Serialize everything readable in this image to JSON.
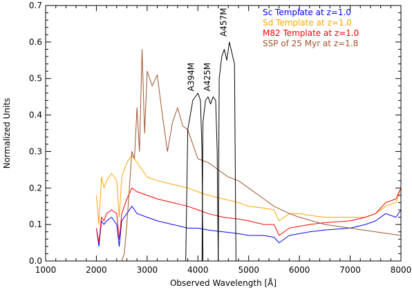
{
  "chart_data": {
    "type": "line",
    "xlabel": "Observed Wavelength [Å]",
    "ylabel": "Normalized Units",
    "xlim": [
      1000,
      8000
    ],
    "ylim": [
      0.0,
      0.7
    ],
    "x_ticks": [
      1000,
      2000,
      3000,
      4000,
      5000,
      6000,
      7000,
      8000
    ],
    "x_tick_labels": [
      "1000",
      "2000",
      "3000",
      "4000",
      "5000",
      "6000",
      "7000",
      "8000"
    ],
    "y_ticks": [
      0.0,
      0.1,
      0.2,
      0.3,
      0.4,
      0.5,
      0.6,
      0.7
    ],
    "y_tick_labels": [
      "0.0",
      "0.1",
      "0.2",
      "0.3",
      "0.4",
      "0.5",
      "0.6",
      "0.7"
    ],
    "grid": false,
    "legend_position": "top-right",
    "series": [
      {
        "name": "Sc Template at z=1.0",
        "color": "#0000ff",
        "x": [
          2000,
          2050,
          2100,
          2150,
          2200,
          2300,
          2400,
          2450,
          2500,
          2550,
          2600,
          2700,
          2800,
          3000,
          3200,
          3500,
          3800,
          4000,
          4200,
          4500,
          4800,
          5000,
          5300,
          5500,
          5600,
          5800,
          6000,
          6200,
          6500,
          7000,
          7300,
          7500,
          7700,
          7900,
          8000
        ],
        "y": [
          0.09,
          0.04,
          0.11,
          0.1,
          0.11,
          0.12,
          0.1,
          0.04,
          0.11,
          0.12,
          0.13,
          0.15,
          0.13,
          0.12,
          0.11,
          0.1,
          0.09,
          0.09,
          0.085,
          0.08,
          0.075,
          0.07,
          0.07,
          0.065,
          0.05,
          0.07,
          0.075,
          0.08,
          0.085,
          0.09,
          0.1,
          0.11,
          0.13,
          0.12,
          0.14
        ]
      },
      {
        "name": "Sd Template at z=1.0",
        "color": "#ffa500",
        "x": [
          2000,
          2050,
          2100,
          2150,
          2200,
          2300,
          2400,
          2450,
          2500,
          2550,
          2600,
          2700,
          2800,
          3000,
          3200,
          3500,
          3800,
          4000,
          4200,
          4500,
          4800,
          5000,
          5300,
          5500,
          5600,
          5800,
          6000,
          6200,
          6500,
          7000,
          7300,
          7500,
          7700,
          7900,
          8000
        ],
        "y": [
          0.18,
          0.1,
          0.23,
          0.2,
          0.22,
          0.24,
          0.22,
          0.12,
          0.23,
          0.25,
          0.27,
          0.29,
          0.27,
          0.23,
          0.22,
          0.21,
          0.2,
          0.19,
          0.18,
          0.17,
          0.16,
          0.15,
          0.145,
          0.14,
          0.11,
          0.13,
          0.13,
          0.125,
          0.12,
          0.12,
          0.12,
          0.13,
          0.15,
          0.16,
          0.2
        ]
      },
      {
        "name": "M82 Template at z=1.0",
        "color": "#ff0000",
        "x": [
          2000,
          2050,
          2100,
          2150,
          2200,
          2300,
          2400,
          2450,
          2500,
          2550,
          2600,
          2700,
          2800,
          3000,
          3200,
          3500,
          3800,
          4000,
          4200,
          4500,
          4800,
          5000,
          5300,
          5500,
          5600,
          5800,
          6000,
          6200,
          6500,
          7000,
          7300,
          7500,
          7700,
          7900,
          8000
        ],
        "y": [
          0.09,
          0.05,
          0.12,
          0.11,
          0.13,
          0.14,
          0.13,
          0.06,
          0.13,
          0.15,
          0.17,
          0.2,
          0.19,
          0.18,
          0.17,
          0.16,
          0.15,
          0.14,
          0.13,
          0.12,
          0.115,
          0.11,
          0.1,
          0.1,
          0.07,
          0.09,
          0.095,
          0.1,
          0.105,
          0.11,
          0.12,
          0.13,
          0.16,
          0.17,
          0.2
        ]
      },
      {
        "name": "SSP of 25 Myr at z=1.8",
        "color": "#a0522d",
        "x": [
          2500,
          2550,
          2600,
          2650,
          2700,
          2750,
          2800,
          2850,
          2900,
          2950,
          3000,
          3100,
          3200,
          3300,
          3400,
          3500,
          3600,
          3700,
          3800,
          3900,
          4000,
          4200,
          4400,
          4600,
          4800,
          5000,
          5300,
          5500,
          5800,
          6000,
          6500,
          7000,
          7500,
          8000
        ],
        "y": [
          0.0,
          0.02,
          0.1,
          0.2,
          0.3,
          0.28,
          0.42,
          0.3,
          0.58,
          0.35,
          0.52,
          0.48,
          0.51,
          0.4,
          0.3,
          0.38,
          0.42,
          0.37,
          0.36,
          0.32,
          0.28,
          0.27,
          0.25,
          0.23,
          0.22,
          0.2,
          0.17,
          0.15,
          0.13,
          0.12,
          0.1,
          0.09,
          0.08,
          0.07
        ]
      },
      {
        "name": "A394M",
        "color": "#000000",
        "x": [
          3760,
          3800,
          3850,
          3900,
          3950,
          4000,
          4050,
          4080,
          4100
        ],
        "y": [
          0.0,
          0.36,
          0.4,
          0.44,
          0.45,
          0.46,
          0.44,
          0.3,
          0.0
        ]
      },
      {
        "name": "A425M",
        "color": "#000000",
        "x": [
          4080,
          4100,
          4150,
          4200,
          4250,
          4300,
          4350,
          4380,
          4400
        ],
        "y": [
          0.0,
          0.38,
          0.44,
          0.45,
          0.43,
          0.45,
          0.44,
          0.3,
          0.0
        ]
      },
      {
        "name": "A457M",
        "color": "#000000",
        "x": [
          4400,
          4420,
          4470,
          4520,
          4570,
          4620,
          4670,
          4720,
          4750
        ],
        "y": [
          0.0,
          0.5,
          0.56,
          0.58,
          0.55,
          0.6,
          0.57,
          0.54,
          0.0
        ]
      }
    ],
    "annotations": [
      {
        "text": "A394M",
        "x": 3920,
        "y": 0.465,
        "rotation": -90
      },
      {
        "text": "A425M",
        "x": 4240,
        "y": 0.465,
        "rotation": -90
      },
      {
        "text": "A457M",
        "x": 4560,
        "y": 0.615,
        "rotation": -90
      }
    ]
  }
}
